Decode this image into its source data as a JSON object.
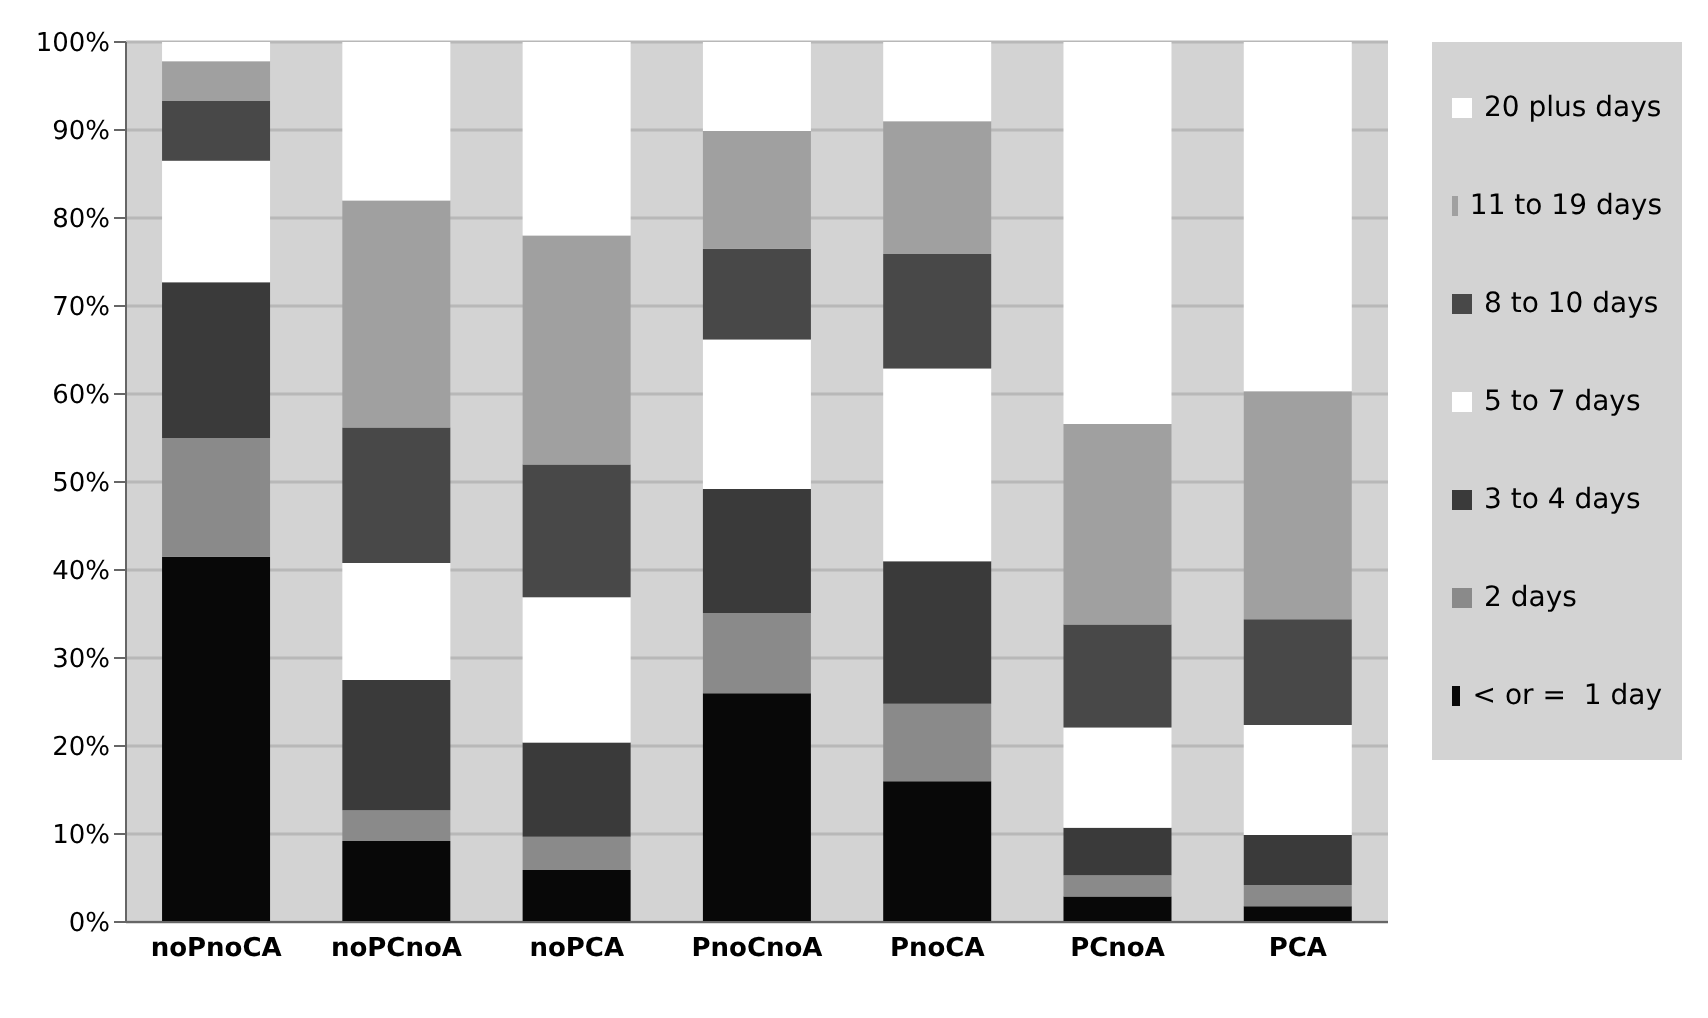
{
  "chart_data": {
    "type": "bar",
    "stacked": true,
    "categories": [
      "noPnoCA",
      "noPCnoA",
      "noPCA",
      "PnoCnoA",
      "PnoCA",
      "PCnoA",
      "PCA"
    ],
    "series": [
      {
        "name": "< or =  1 day",
        "color": "#080808",
        "values": [
          41.5,
          9.2,
          5.9,
          26,
          16,
          2.9,
          1.8
        ]
      },
      {
        "name": "2 days",
        "color": "#8a8a8a",
        "values": [
          13.5,
          3.5,
          3.8,
          9.1,
          8.8,
          2.4,
          2.4
        ]
      },
      {
        "name": "3 to 4 days",
        "color": "#3a3a3a",
        "values": [
          17.7,
          14.8,
          10.7,
          14.1,
          16.2,
          5.4,
          5.7
        ]
      },
      {
        "name": "5 to 7 days",
        "color": "#ffffff",
        "values": [
          13.8,
          13.3,
          16.5,
          17,
          21.9,
          11.4,
          12.5
        ]
      },
      {
        "name": "8 to 10 days",
        "color": "#484848",
        "values": [
          6.8,
          15.4,
          15.1,
          10.3,
          13,
          11.7,
          12
        ]
      },
      {
        "name": "11 to 19 days",
        "color": "#a0a0a0",
        "values": [
          4.5,
          25.8,
          26,
          13.4,
          15.1,
          22.8,
          25.9
        ]
      },
      {
        "name": "20 plus days",
        "color": "#ffffff",
        "values": [
          2.2,
          18,
          22,
          10.1,
          9,
          43.4,
          39.7
        ]
      }
    ],
    "ylim": [
      0,
      100
    ],
    "yticks": [
      {
        "value": 0,
        "label": "0%"
      },
      {
        "value": 10,
        "label": "10%"
      },
      {
        "value": 20,
        "label": "20%"
      },
      {
        "value": 30,
        "label": "30%"
      },
      {
        "value": 40,
        "label": "40%"
      },
      {
        "value": 50,
        "label": "50%"
      },
      {
        "value": 60,
        "label": "60%"
      },
      {
        "value": 70,
        "label": "70%"
      },
      {
        "value": 80,
        "label": "80%"
      },
      {
        "value": 90,
        "label": "90%"
      },
      {
        "value": 100,
        "label": "100%"
      }
    ],
    "grid": "y",
    "legend": "right"
  }
}
